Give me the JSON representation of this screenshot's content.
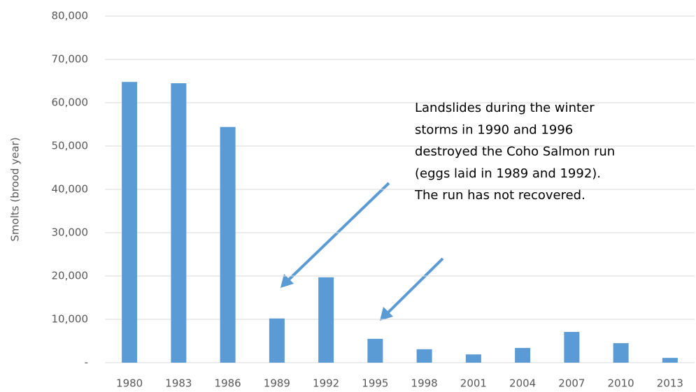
{
  "chart_data": {
    "type": "bar",
    "y_label": "Smolts (brood year)",
    "categories": [
      "1980",
      "1983",
      "1986",
      "1989",
      "1992",
      "1995",
      "1998",
      "2001",
      "2004",
      "2007",
      "2010",
      "2013"
    ],
    "values": [
      64800,
      64500,
      54400,
      10200,
      19700,
      5500,
      3100,
      1900,
      3400,
      7100,
      4500,
      1100
    ],
    "color": "#5b9bd5",
    "ylim": [
      0,
      80000
    ],
    "yticks": [
      {
        "value": 0,
        "label": "-"
      },
      {
        "value": 10000,
        "label": "10,000"
      },
      {
        "value": 20000,
        "label": "20,000"
      },
      {
        "value": 30000,
        "label": "30,000"
      },
      {
        "value": 40000,
        "label": "40,000"
      },
      {
        "value": 50000,
        "label": "50,000"
      },
      {
        "value": 60000,
        "label": "60,000"
      },
      {
        "value": 70000,
        "label": "70,000"
      },
      {
        "value": 80000,
        "label": "80,000"
      }
    ],
    "grid": true,
    "annotation": [
      "Landslides during the winter",
      "storms in 1990 and 1996",
      "destroyed the Coho Salmon run",
      "(eggs laid in 1989 and 1992).",
      "The run has not recovered."
    ]
  }
}
